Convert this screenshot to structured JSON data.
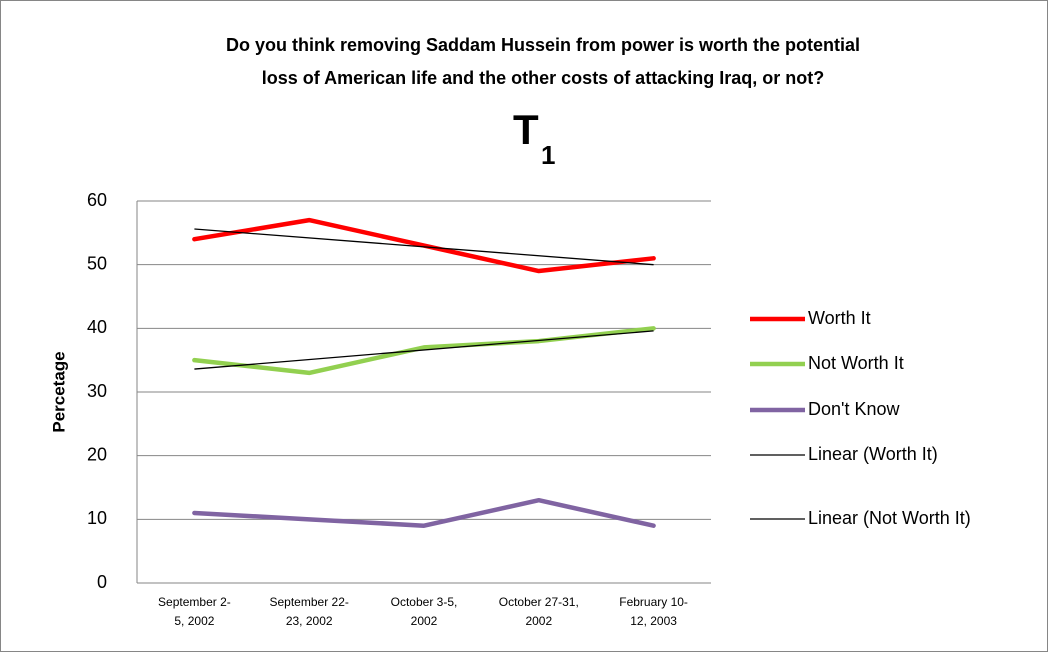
{
  "chart_data": {
    "type": "line",
    "title": [
      "Do you think removing Saddam Hussein from power is worth the potential",
      "loss of American life and the other costs of attacking Iraq, or not?"
    ],
    "subtitle": "T",
    "subtitle_subscript": "1",
    "y_label": "Percetage",
    "categories": [
      [
        "September 2-",
        "5, 2002"
      ],
      [
        "September 22-",
        "23, 2002"
      ],
      [
        "October 3-5,",
        "2002"
      ],
      [
        "October 27-31,",
        "2002"
      ],
      [
        "February 10-",
        "12, 2003"
      ]
    ],
    "series": [
      {
        "name": "Worth It",
        "color": "#ff0000",
        "values": [
          54,
          57,
          53,
          49,
          51
        ]
      },
      {
        "name": "Not Worth It",
        "color": "#92d050",
        "values": [
          35,
          33,
          37,
          38,
          40
        ]
      },
      {
        "name": "Don't Know",
        "color": "#8064a2",
        "values": [
          11,
          10,
          9,
          13,
          9
        ]
      }
    ],
    "trendlines": [
      {
        "name": "Linear (Worth It)",
        "of": 0,
        "color": "#000000"
      },
      {
        "name": "Linear (Not Worth It)",
        "of": 1,
        "color": "#000000"
      }
    ],
    "ylim": [
      0,
      60
    ],
    "yticks": [
      0,
      10,
      20,
      30,
      40,
      50,
      60
    ],
    "grid": true,
    "legend": "right"
  }
}
